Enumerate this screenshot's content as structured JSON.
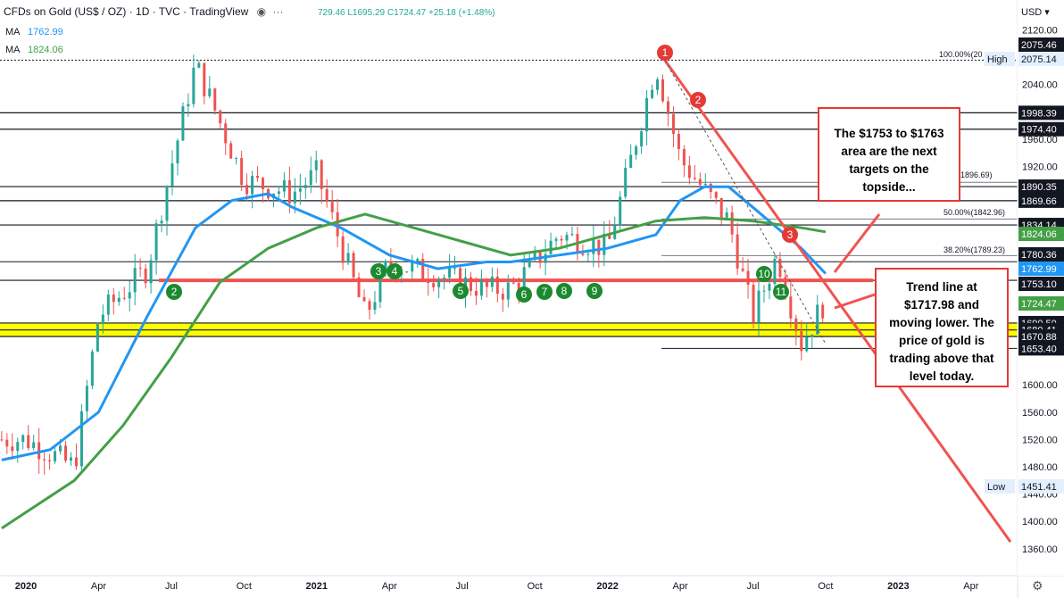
{
  "header": {
    "title": "CFDs on Gold (US$ / OZ) · 1D · TVC · TradingView",
    "ohlc": "729.46 L1695.29 C1724.47 +25.18 (+1.48%)"
  },
  "ma_legend": [
    {
      "label": "MA",
      "value": "1762.99",
      "color": "#2196f3"
    },
    {
      "label": "MA",
      "value": "1824.06",
      "color": "#43a047"
    }
  ],
  "axis": {
    "currency": "USD",
    "price_ticks": [
      "2120.00",
      "2040.00",
      "1960.00",
      "1920.00",
      "1600.00",
      "1560.00",
      "1520.00",
      "1480.00",
      "1440.00",
      "1400.00",
      "1360.00"
    ],
    "time_ticks": [
      "2020",
      "Apr",
      "Jul",
      "Oct",
      "2021",
      "Apr",
      "Jul",
      "Oct",
      "2022",
      "Apr",
      "Jul",
      "Oct",
      "2023",
      "Apr"
    ]
  },
  "price_labels": [
    {
      "value": "2075.46",
      "style": "dark"
    },
    {
      "value": "2075.14",
      "style": "light",
      "prefix": "High"
    },
    {
      "value": "1998.39",
      "style": "dark"
    },
    {
      "value": "1974.40",
      "style": "dark"
    },
    {
      "value": "1890.35",
      "style": "dark"
    },
    {
      "value": "1869.66",
      "style": "dark"
    },
    {
      "value": "1834.14",
      "style": "dark"
    },
    {
      "value": "1824.06",
      "style": "green"
    },
    {
      "value": "1780.36",
      "style": "dark"
    },
    {
      "value": "1762.99",
      "style": "blue"
    },
    {
      "value": "1753.10",
      "style": "dark"
    },
    {
      "value": "1724.47",
      "style": "green"
    },
    {
      "value": "1690.50",
      "style": "dark"
    },
    {
      "value": "1680.41",
      "style": "dark"
    },
    {
      "value": "1670.88",
      "style": "dark"
    },
    {
      "value": "1653.40",
      "style": "dark"
    },
    {
      "value": "1451.41",
      "style": "light",
      "prefix": "Low"
    }
  ],
  "fib_labels": [
    "100.00%(20",
    "(1896.69)",
    "50.00%(1842.96)",
    "38.20%(1789.23)"
  ],
  "markers": {
    "red": [
      "1",
      "2",
      "3"
    ],
    "green": [
      "2",
      "3",
      "4",
      "5",
      "6",
      "7",
      "8",
      "9",
      "10",
      "11"
    ]
  },
  "callouts": {
    "targets": "The $1753 to $1763 area are the next targets on the topside...",
    "trendline": "Trend line at $1717.98 and moving lower. The price of gold is trading above that level today."
  },
  "colors": {
    "trendline": "#ef5350",
    "support_line": "#ef5350",
    "ma_fast": "#2196f3",
    "ma_slow": "#43a047",
    "zone": "#ffff00",
    "candles": "#26a69a"
  },
  "chart_data": {
    "type": "line",
    "title": "CFDs on Gold (US$ / OZ)",
    "ylabel": "USD",
    "ylim": [
      1330,
      2140
    ],
    "x_range": [
      "2020-01",
      "2023-04"
    ],
    "close_approx": {
      "x": [
        "2020-01",
        "2020-03",
        "2020-04",
        "2020-06",
        "2020-08",
        "2020-10",
        "2020-12",
        "2021-01",
        "2021-03",
        "2021-04",
        "2021-06",
        "2021-08",
        "2021-09",
        "2021-11",
        "2022-01",
        "2022-03",
        "2022-04",
        "2022-06",
        "2022-07",
        "2022-08",
        "2022-09",
        "2022-10"
      ],
      "y": [
        1520,
        1480,
        1700,
        1770,
        2070,
        1900,
        1880,
        1910,
        1700,
        1780,
        1760,
        1740,
        1740,
        1820,
        1800,
        2070,
        1930,
        1840,
        1700,
        1790,
        1660,
        1724.47
      ]
    },
    "series": [
      {
        "name": "MA",
        "last": 1762.99
      },
      {
        "name": "MA",
        "last": 1824.06
      }
    ],
    "horizontal_levels": [
      2075.46,
      1998.39,
      1974.4,
      1890.35,
      1869.66,
      1834.14,
      1780.36,
      1753.1,
      1690.5,
      1680.41,
      1670.88,
      1653.4
    ],
    "support_zone": [
      1670.88,
      1690.5
    ],
    "trendline_today": 1717.98,
    "current_price": 1724.47
  }
}
